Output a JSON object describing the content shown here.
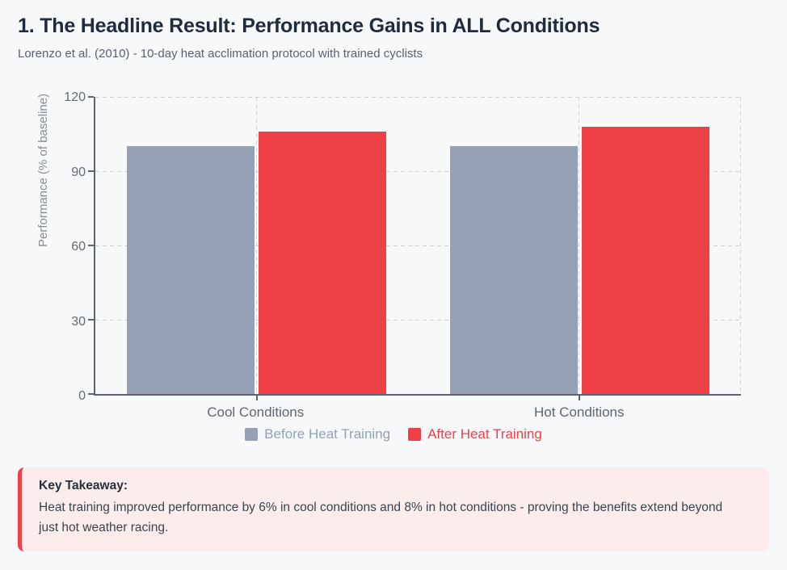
{
  "header": {
    "title": "1. The Headline Result: Performance Gains in ALL Conditions",
    "subtitle": "Lorenzo et al. (2010) - 10-day heat acclimation protocol with trained cyclists"
  },
  "chart_data": {
    "type": "bar",
    "categories": [
      "Cool Conditions",
      "Hot Conditions"
    ],
    "series": [
      {
        "name": "Before Heat Training",
        "color": "#94a1b5",
        "values": [
          100,
          100
        ]
      },
      {
        "name": "After Heat Training",
        "color": "#ee4145",
        "values": [
          106,
          108
        ]
      }
    ],
    "ylabel": "Performance (% of baseline)",
    "yticks": [
      0,
      30,
      60,
      90,
      120
    ],
    "ylim": [
      0,
      120
    ],
    "grid": "dashed horizontal gridlines at y ticks; dashed vertical lines at category centers and right edge",
    "legend_position": "bottom"
  },
  "takeaway": {
    "title": "Key Takeaway:",
    "body": "Heat training improved performance by 6% in cool conditions and 8% in hot conditions - proving the benefits extend beyond just hot weather racing.",
    "accent_color": "#ee4147",
    "background_color": "#fcedec"
  }
}
